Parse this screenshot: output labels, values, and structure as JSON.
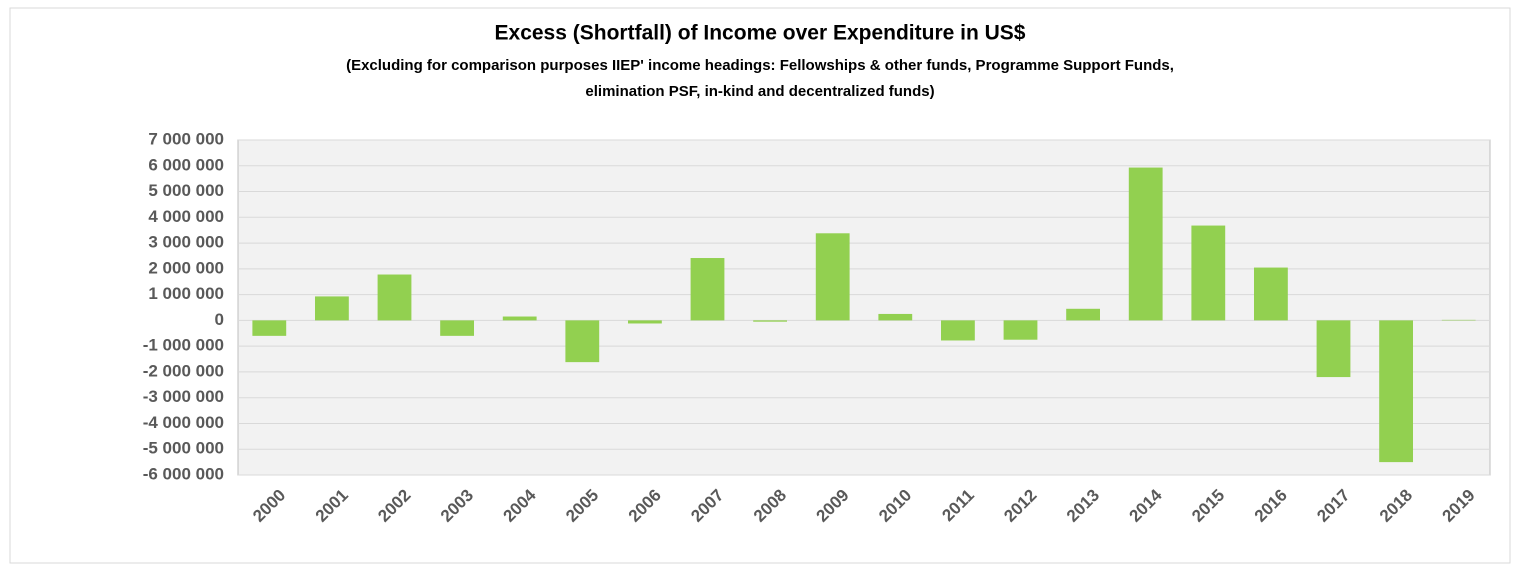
{
  "chart_data": {
    "type": "bar",
    "title": "Excess (Shortfall) of Income over Expenditure in US$",
    "subtitle": [
      "(Excluding for comparison purposes  IIEP' income headings: Fellowships & other funds, Programme Support Funds,",
      "elimination PSF, in-kind and decentralized funds)"
    ],
    "categories": [
      "2000",
      "2001",
      "2002",
      "2003",
      "2004",
      "2005",
      "2006",
      "2007",
      "2008",
      "2009",
      "2010",
      "2011",
      "2012",
      "2013",
      "2014",
      "2015",
      "2016",
      "2017",
      "2018",
      "2019"
    ],
    "values": [
      -600000,
      930000,
      1780000,
      -600000,
      150000,
      -1620000,
      -120000,
      2420000,
      -50000,
      3380000,
      250000,
      -780000,
      -750000,
      450000,
      5930000,
      3680000,
      2050000,
      -2200000,
      -5500000,
      20000
    ],
    "color": "#92d050",
    "ylim": [
      -6000000,
      7000000
    ],
    "yticks": [
      {
        "value": -6000000,
        "label": "-6 000 000"
      },
      {
        "value": -5000000,
        "label": "-5 000 000"
      },
      {
        "value": -4000000,
        "label": "-4 000 000"
      },
      {
        "value": -3000000,
        "label": "-3 000 000"
      },
      {
        "value": -2000000,
        "label": "-2 000 000"
      },
      {
        "value": -1000000,
        "label": "-1 000 000"
      },
      0,
      {
        "value": 1000000,
        "label": "1 000 000"
      },
      {
        "value": 2000000,
        "label": "2 000 000"
      },
      {
        "value": 3000000,
        "label": "3 000 000"
      },
      {
        "value": 4000000,
        "label": "4 000 000"
      },
      {
        "value": 5000000,
        "label": "5 000 000"
      },
      {
        "value": 6000000,
        "label": "6 000 000"
      },
      {
        "value": 7000000,
        "label": "7 000 000"
      }
    ],
    "grid": true
  }
}
